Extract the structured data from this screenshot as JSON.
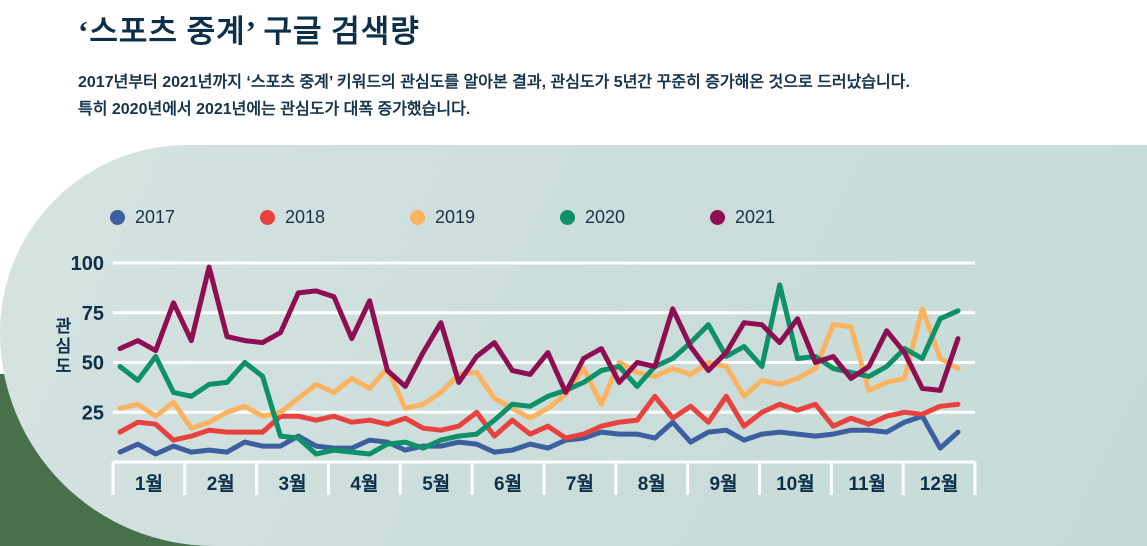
{
  "header": {
    "title": "‘스포츠 중계’ 구글 검색량",
    "subtitle_line1": "2017년부터 2021년까지 ‘스포츠 중계’ 키워드의 관심도를 알아본 결과, 관심도가 5년간 꾸준히 증가해온 것으로 드러났습니다.",
    "subtitle_line2": "특히 2020년에서 2021년에는 관심도가 대폭 증가했습니다."
  },
  "colors": {
    "text_navy": "#0d3048",
    "panel_background": "#cadddb",
    "accent_green": "#47704b",
    "gridline": "#ffffff"
  },
  "chart_data": {
    "type": "line",
    "title": "‘스포츠 중계’ 구글 검색량",
    "xlabel": "",
    "ylabel": "관심도",
    "grid": true,
    "legend_position": "top",
    "y_axis": {
      "ticks": [
        100,
        75,
        50,
        25
      ],
      "range": [
        0,
        100
      ]
    },
    "x_axis": {
      "months": [
        "1월",
        "2월",
        "3월",
        "4월",
        "5월",
        "6월",
        "7월",
        "8월",
        "9월",
        "10월",
        "11월",
        "12월"
      ],
      "points_per_month": 4
    },
    "series": [
      {
        "name": "2017",
        "color": "#3d5f9f",
        "values": [
          5,
          9,
          4,
          8,
          5,
          6,
          5,
          10,
          8,
          8,
          13,
          8,
          7,
          7,
          11,
          10,
          6,
          8,
          8,
          10,
          9,
          5,
          6,
          9,
          7,
          11,
          12,
          15,
          14,
          14,
          12,
          20,
          10,
          15,
          16,
          11,
          14,
          15,
          14,
          13,
          14,
          16,
          16,
          15,
          20,
          23,
          7,
          15
        ]
      },
      {
        "name": "2018",
        "color": "#e8423f",
        "values": [
          15,
          20,
          19,
          11,
          13,
          16,
          15,
          15,
          15,
          23,
          23,
          21,
          23,
          20,
          21,
          19,
          22,
          17,
          16,
          18,
          25,
          13,
          21,
          14,
          18,
          12,
          14,
          18,
          20,
          21,
          33,
          22,
          28,
          20,
          33,
          18,
          25,
          29,
          26,
          29,
          18,
          22,
          19,
          23,
          25,
          24,
          28,
          29
        ]
      },
      {
        "name": "2019",
        "color": "#fcb35f",
        "values": [
          27,
          29,
          23,
          30,
          17,
          20,
          25,
          28,
          23,
          25,
          32,
          39,
          35,
          42,
          37,
          47,
          27,
          29,
          35,
          44,
          45,
          32,
          27,
          22,
          27,
          34,
          47,
          29,
          50,
          45,
          43,
          47,
          44,
          50,
          48,
          33,
          41,
          39,
          42,
          47,
          69,
          68,
          36,
          40,
          42,
          77,
          52,
          47
        ]
      },
      {
        "name": "2020",
        "color": "#0e9069",
        "values": [
          48,
          41,
          53,
          35,
          33,
          39,
          40,
          50,
          43,
          13,
          12,
          4,
          6,
          5,
          4,
          9,
          10,
          7,
          11,
          13,
          14,
          21,
          29,
          28,
          33,
          36,
          40,
          46,
          48,
          38,
          48,
          52,
          60,
          69,
          53,
          58,
          48,
          89,
          52,
          53,
          47,
          45,
          43,
          48,
          57,
          52,
          72,
          76
        ]
      },
      {
        "name": "2021",
        "color": "#8e0e52",
        "values": [
          57,
          61,
          56,
          80,
          61,
          98,
          63,
          61,
          60,
          65,
          85,
          86,
          83,
          62,
          81,
          46,
          38,
          55,
          70,
          40,
          53,
          60,
          46,
          44,
          55,
          35,
          52,
          57,
          40,
          50,
          48,
          77,
          58,
          46,
          55,
          70,
          69,
          60,
          72,
          50,
          53,
          42,
          48,
          66,
          55,
          37,
          36,
          62
        ]
      }
    ]
  }
}
